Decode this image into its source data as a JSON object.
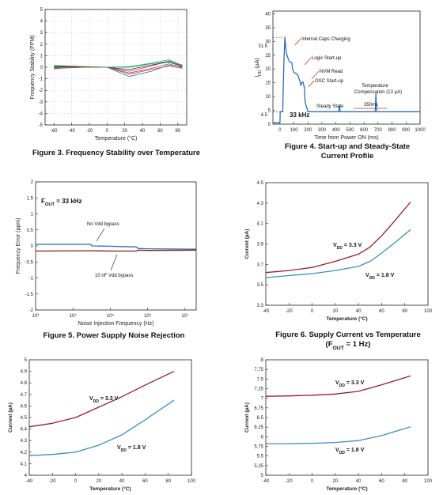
{
  "chart_data": [
    {
      "id": "fig3",
      "type": "line",
      "caption": "Figure 3. Frequency Stability over Temperature",
      "xlabel": "Temperature (°C)",
      "ylabel": "Frequency Stability (PPM)",
      "xlim": [
        -70,
        90
      ],
      "ylim": [
        -5,
        5
      ],
      "xticks": [
        "-60",
        "-40",
        "-20",
        "0",
        "20",
        "40",
        "60",
        "80"
      ],
      "yticks": [
        "-5",
        "-4",
        "-3",
        "-2",
        "-1",
        "0",
        "1",
        "2",
        "3",
        "4",
        "5"
      ],
      "grid": true,
      "series": [
        {
          "color": "#2b6fb3",
          "x": [
            -60,
            -40,
            -20,
            0,
            25,
            50,
            70,
            85
          ],
          "y": [
            -0.05,
            0,
            0,
            0,
            -0.8,
            -0.35,
            0.2,
            0
          ]
        },
        {
          "color": "#c0392b",
          "x": [
            -60,
            -40,
            -20,
            0,
            25,
            50,
            70,
            85
          ],
          "y": [
            0.1,
            0.05,
            0,
            0,
            -0.35,
            0.1,
            0.55,
            0.1
          ]
        },
        {
          "color": "#27ae60",
          "x": [
            -60,
            -40,
            -20,
            0,
            25,
            50,
            70,
            85
          ],
          "y": [
            0,
            0,
            0.05,
            0,
            0.05,
            0.35,
            0.65,
            0.15
          ]
        },
        {
          "color": "#8e44ad",
          "x": [
            -60,
            -40,
            -20,
            0,
            25,
            50,
            70,
            85
          ],
          "y": [
            -0.1,
            -0.05,
            0,
            0,
            -0.5,
            -0.1,
            0.3,
            -0.05
          ]
        },
        {
          "color": "#333333",
          "x": [
            -60,
            -40,
            -20,
            0,
            25,
            50,
            70,
            85
          ],
          "y": [
            0.05,
            0.05,
            0,
            0,
            -0.2,
            0.2,
            0.45,
            0.05
          ]
        },
        {
          "color": "#d35400",
          "x": [
            -60,
            -40,
            -20,
            0,
            25,
            50,
            70,
            85
          ],
          "y": [
            -0.15,
            0,
            0,
            0,
            -0.6,
            -0.2,
            0.1,
            -0.1
          ]
        },
        {
          "color": "#16a085",
          "x": [
            -60,
            -40,
            -20,
            0,
            25,
            50,
            70,
            85
          ],
          "y": [
            0.15,
            0.1,
            0.05,
            0,
            0,
            0.3,
            0.5,
            0.2
          ]
        }
      ]
    },
    {
      "id": "fig4",
      "type": "line",
      "caption_lines": [
        "Figure 4. Start-up and Steady-State",
        "Current Profile"
      ],
      "xlabel": "Time from Power ON (ms)",
      "ylabel": "I_DD (µA)",
      "xlim": [
        -50,
        1000
      ],
      "ylim": [
        0,
        41
      ],
      "xticks": [
        "0",
        "100",
        "200",
        "300",
        "400",
        "500",
        "600",
        "700",
        "800",
        "900",
        "1000"
      ],
      "yticks": [
        "0",
        "5",
        "10",
        "15",
        "20",
        "25",
        "30",
        "35",
        "40"
      ],
      "ytick_values": [
        0,
        5,
        10,
        15,
        20,
        25,
        30,
        35,
        40
      ],
      "series": [
        {
          "color": "#2b6fb3",
          "x": [
            -50,
            0,
            2,
            20,
            28,
            35,
            45,
            60,
            70,
            85,
            90,
            100,
            110,
            120,
            130,
            140,
            150,
            155,
            165,
            175,
            180,
            200,
            420,
            425,
            430,
            440,
            680,
            685,
            690,
            700,
            1000
          ],
          "y": [
            0.5,
            0.5,
            4.5,
            4.5,
            22,
            31.5,
            26,
            23.5,
            22.5,
            22.3,
            20,
            18.7,
            18.5,
            18.2,
            17.5,
            16,
            14,
            15,
            15.3,
            13,
            8,
            4.5,
            4.5,
            6.8,
            4.5,
            4.5,
            4.5,
            11,
            4.5,
            4.5,
            4.5
          ]
        }
      ],
      "ref_lines": [
        {
          "axis": "y",
          "value": 31.5
        },
        {
          "axis": "y",
          "value": 4.5
        }
      ],
      "y_marks": [
        "31.5",
        "4.5"
      ],
      "annotations": [
        "Internal Caps Charging",
        "Logic Start-up",
        "NVM Read",
        "OSC Start-up",
        "Temperature",
        "Compensation (13 µA)",
        "Steady State",
        "350ms",
        "33 kHz"
      ]
    },
    {
      "id": "fig5",
      "type": "line",
      "caption": "Figure 5. Power Supply Noise Rejection",
      "xlabel": "Noise Injection Frequency (Hz)",
      "ylabel": "Frequency Error (ppm)",
      "xscale": "log",
      "xlim": [
        1000,
        20000000
      ],
      "ylim": [
        -2,
        2
      ],
      "xticks": [
        "10³",
        "10⁴",
        "10⁵",
        "10⁶",
        "10⁷"
      ],
      "xtick_values": [
        1000,
        10000,
        100000,
        1000000,
        10000000
      ],
      "yticks": [
        "-2",
        "-1.5",
        "-1",
        "-0.5",
        "0",
        "0.5",
        "1",
        "1.5",
        "2"
      ],
      "legend_text": "F_OUT = 33 kHz",
      "series": [
        {
          "name": "No Vdd bypass",
          "color": "#2b6fb3",
          "x": [
            1000,
            30000,
            32000,
            100000,
            200000,
            500000,
            550000,
            1000000,
            20000000
          ],
          "y": [
            0.05,
            0.05,
            0.0,
            -0.01,
            -0.02,
            -0.03,
            -0.08,
            -0.09,
            -0.1
          ]
        },
        {
          "name": "10 nF Vdd bypass",
          "color": "#8b1a1a",
          "x": [
            1000,
            30000,
            100000,
            500000,
            550000,
            1000000,
            20000000
          ],
          "y": [
            -0.16,
            -0.15,
            -0.16,
            -0.16,
            -0.13,
            -0.14,
            -0.13
          ]
        }
      ]
    },
    {
      "id": "fig6",
      "type": "line",
      "caption_lines": [
        "Figure 6. Supply Current vs Temperature",
        "(F_OUT = 1 Hz)"
      ],
      "xlabel": "Temperature (°C)",
      "ylabel": "Current (µA)",
      "xlim": [
        -40,
        100
      ],
      "ylim": [
        3.3,
        4.5
      ],
      "xticks": [
        "-40",
        "-20",
        "0",
        "20",
        "40",
        "60",
        "80",
        "100"
      ],
      "yticks": [
        "3.3",
        "3.5",
        "3.7",
        "3.9",
        "4.1",
        "4.3",
        "4.5"
      ],
      "series": [
        {
          "name": "V_DD = 3.3 V",
          "color": "#9b1b30",
          "x": [
            -40,
            -20,
            0,
            20,
            40,
            50,
            60,
            70,
            85
          ],
          "y": [
            3.62,
            3.64,
            3.67,
            3.73,
            3.8,
            3.87,
            3.98,
            4.11,
            4.31
          ]
        },
        {
          "name": "V_DD = 1.8 V",
          "color": "#3a8fc0",
          "x": [
            -40,
            -20,
            0,
            20,
            40,
            50,
            60,
            70,
            85
          ],
          "y": [
            3.57,
            3.59,
            3.61,
            3.64,
            3.68,
            3.73,
            3.81,
            3.9,
            4.04
          ]
        }
      ]
    },
    {
      "id": "fig7",
      "type": "line",
      "xlabel": "Temperature (°C)",
      "ylabel": "Current (µA)",
      "xlim": [
        -40,
        100
      ],
      "ylim": [
        4,
        5
      ],
      "xticks": [
        "-40",
        "-20",
        "0",
        "20",
        "40",
        "60",
        "80",
        "100"
      ],
      "yticks": [
        "4",
        "4.1",
        "4.2",
        "4.3",
        "4.4",
        "4.5",
        "4.6",
        "4.7",
        "4.8",
        "4.9",
        "5"
      ],
      "series": [
        {
          "name": "V_DD = 3.3 V",
          "color": "#9b1b30",
          "x": [
            -40,
            -20,
            0,
            20,
            40,
            60,
            85
          ],
          "y": [
            4.42,
            4.45,
            4.5,
            4.59,
            4.68,
            4.78,
            4.9
          ]
        },
        {
          "name": "V_DD = 1.8 V",
          "color": "#3a8fc0",
          "x": [
            -40,
            -20,
            0,
            20,
            40,
            60,
            85
          ],
          "y": [
            4.17,
            4.18,
            4.2,
            4.26,
            4.35,
            4.48,
            4.65
          ]
        }
      ]
    },
    {
      "id": "fig8",
      "type": "line",
      "xlabel": "Temperature (°C)",
      "ylabel": "Current (µA)",
      "xlim": [
        -40,
        100
      ],
      "ylim": [
        5,
        8
      ],
      "xticks": [
        "-40",
        "-20",
        "0",
        "20",
        "40",
        "60",
        "80",
        "100"
      ],
      "yticks": [
        "5",
        "5.25",
        "5.5",
        "5.75",
        "6",
        "6.25",
        "6.5",
        "6.75",
        "7",
        "7.25",
        "7.5",
        "7.75",
        "8"
      ],
      "series": [
        {
          "name": "V_DD = 3.3 V",
          "color": "#9b1b30",
          "x": [
            -40,
            -20,
            0,
            20,
            40,
            60,
            85
          ],
          "y": [
            7.05,
            7.06,
            7.08,
            7.11,
            7.18,
            7.35,
            7.58
          ]
        },
        {
          "name": "V_DD = 1.8 V",
          "color": "#3a8fc0",
          "x": [
            -40,
            -20,
            0,
            20,
            40,
            60,
            85
          ],
          "y": [
            5.82,
            5.82,
            5.83,
            5.85,
            5.9,
            6.03,
            6.26
          ]
        }
      ]
    }
  ]
}
